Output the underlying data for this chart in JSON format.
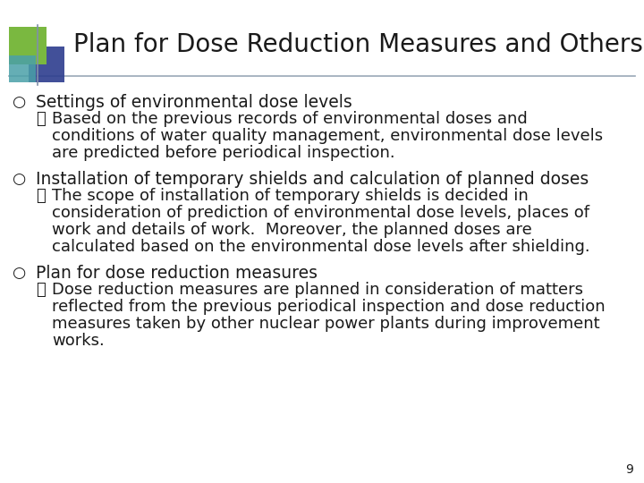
{
  "title": "Plan for Dose Reduction Measures and Others",
  "title_fontsize": 20,
  "body_fontsize": 13.5,
  "sub_fontsize": 13.0,
  "background_color": "#ffffff",
  "title_color": "#1a1a1a",
  "text_color": "#1a1a1a",
  "header_line_color": "#9aa8b8",
  "page_number": "9",
  "logo_colors": {
    "green": "#7ab840",
    "blue_dark": "#2d3d8e",
    "teal": "#4aa0a8",
    "blue_light": "#7090c0"
  },
  "sections": [
    {
      "bullet": "○",
      "heading": "Settings of environmental dose levels",
      "sub_bullet": "・",
      "sub_lines": [
        "Based on the previous records of environmental doses and",
        "conditions of water quality management, environmental dose levels",
        "are predicted before periodical inspection."
      ]
    },
    {
      "bullet": "○",
      "heading": "Installation of temporary shields and calculation of planned doses",
      "sub_bullet": "・",
      "sub_lines": [
        "The scope of installation of temporary shields is decided in",
        "consideration of prediction of environmental dose levels, places of",
        "work and details of work.  Moreover, the planned doses are",
        "calculated based on the environmental dose levels after shielding."
      ]
    },
    {
      "bullet": "○",
      "heading": "Plan for dose reduction measures",
      "sub_bullet": "・",
      "sub_lines": [
        "Dose reduction measures are planned in consideration of matters",
        "reflected from the previous periodical inspection and dose reduction",
        "measures taken by other nuclear power plants during improvement",
        "works."
      ]
    }
  ]
}
